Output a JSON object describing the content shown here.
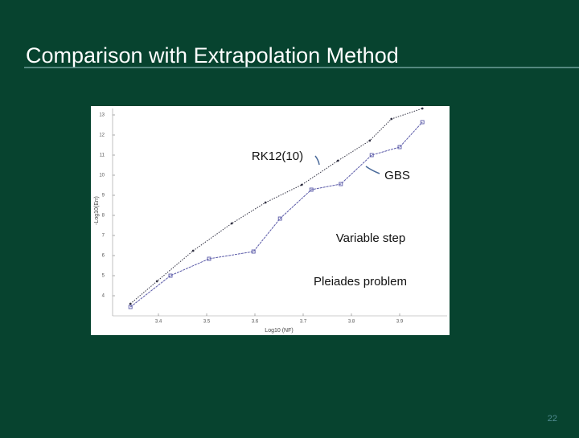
{
  "slide": {
    "title": "Comparison with Extrapolation Method",
    "page_number": "22"
  },
  "chart_data": {
    "type": "line",
    "x_label": "Log10 (NF)",
    "y_label": "-Log10(Err)",
    "annotations": [
      "RK12(10)",
      "GBS",
      "Variable step",
      "Pleiades problem"
    ],
    "xlim": [
      3.3,
      4.0
    ],
    "xticks": [
      3.4,
      3.5,
      3.6,
      3.7,
      3.8,
      3.9
    ],
    "ylim": [
      3,
      13.5
    ],
    "yticks": [
      4,
      5,
      6,
      7,
      8,
      9,
      10,
      11,
      12,
      13
    ],
    "series": [
      {
        "name": "RK12(10)",
        "color": "#333344",
        "x": [
          3.342,
          3.397,
          3.472,
          3.552,
          3.622,
          3.697,
          3.772,
          3.838,
          3.883,
          3.947
        ],
        "values": [
          3.6,
          4.72,
          6.24,
          7.6,
          8.64,
          9.52,
          10.72,
          11.72,
          12.8,
          13.32
        ]
      },
      {
        "name": "GBS",
        "color": "#5a5aa8",
        "x": [
          3.342,
          3.425,
          3.505,
          3.597,
          3.652,
          3.717,
          3.778,
          3.842,
          3.9,
          3.947
        ],
        "values": [
          3.44,
          5.0,
          5.84,
          6.2,
          7.84,
          9.28,
          9.56,
          11.0,
          11.4,
          12.64
        ]
      }
    ]
  }
}
